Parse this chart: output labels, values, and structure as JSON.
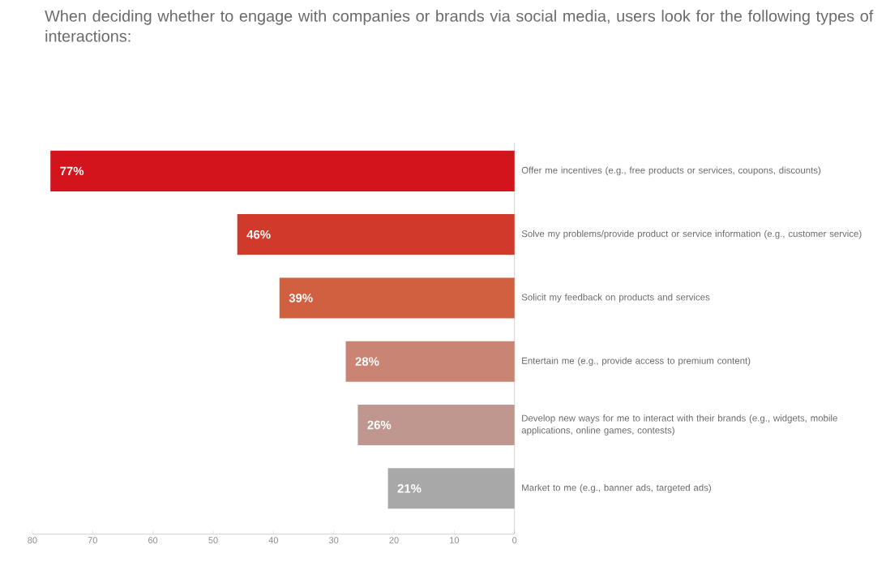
{
  "chart_data": {
    "type": "bar",
    "orientation": "horizontal",
    "title": "When deciding whether to engage with companies or brands via social media, users look for the following types of interactions:",
    "categories": [
      "Offer me incentives (e.g., free products or services, coupons, discounts)",
      "Solve my problems/provide product or service information (e.g., customer service)",
      "Solicit my feedback on products and services",
      "Entertain me (e.g., provide access to premium content)",
      "Develop new ways for me to interact with their brands (e.g., widgets, mobile applications, online games, contests)",
      "Market to me (e.g., banner ads, targeted ads)"
    ],
    "values": [
      77,
      46,
      39,
      28,
      26,
      21
    ],
    "colors": [
      "#d2141c",
      "#cf3a2a",
      "#d0603f",
      "#c98474",
      "#c0978f",
      "#a8a8a8"
    ],
    "value_labels": [
      "77%",
      "46%",
      "39%",
      "28%",
      "26%",
      "21%"
    ],
    "xlim": [
      80,
      0
    ],
    "xticks": [
      80,
      70,
      60,
      50,
      40,
      30,
      20,
      10,
      0
    ]
  }
}
